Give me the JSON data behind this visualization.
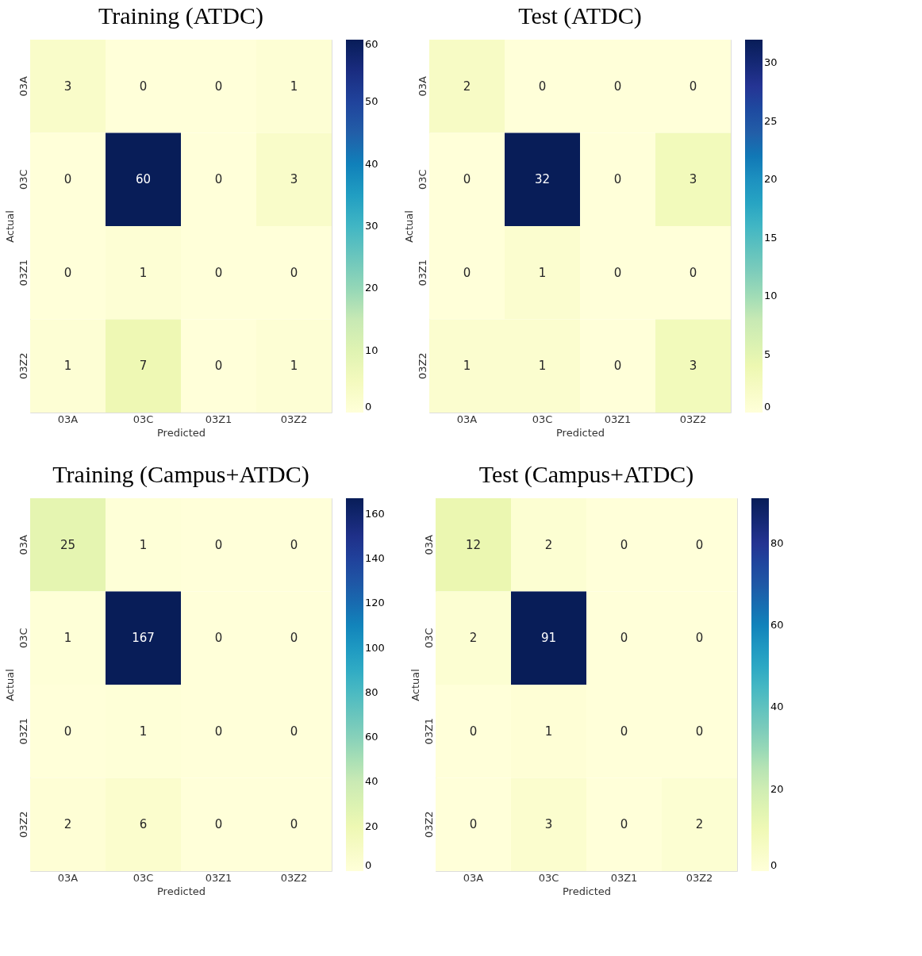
{
  "chart_data": [
    {
      "type": "heatmap",
      "title": "Training (ATDC)",
      "xlabel": "Predicted",
      "ylabel": "Actual",
      "categories": [
        "03A",
        "03C",
        "03Z1",
        "03Z2"
      ],
      "y_categories": [
        "03A",
        "03C",
        "03Z1",
        "03Z2"
      ],
      "cells": [
        [
          3,
          0,
          0,
          1
        ],
        [
          0,
          60,
          0,
          3
        ],
        [
          0,
          1,
          0,
          0
        ],
        [
          1,
          7,
          0,
          1
        ]
      ],
      "clim": [
        0,
        60
      ],
      "cticks": [
        0,
        10,
        20,
        30,
        40,
        50,
        60
      ],
      "data_labels": true
    },
    {
      "type": "heatmap",
      "title": "Test (ATDC)",
      "xlabel": "Predicted",
      "ylabel": "Actual",
      "categories": [
        "03A",
        "03C",
        "03Z1",
        "03Z2"
      ],
      "y_categories": [
        "03A",
        "03C",
        "03Z1",
        "03Z2"
      ],
      "cells": [
        [
          2,
          0,
          0,
          0
        ],
        [
          0,
          32,
          0,
          3
        ],
        [
          0,
          1,
          0,
          0
        ],
        [
          1,
          1,
          0,
          3
        ]
      ],
      "clim": [
        0,
        32
      ],
      "cticks": [
        0,
        5,
        10,
        15,
        20,
        25,
        30
      ],
      "data_labels": true
    },
    {
      "type": "heatmap",
      "title": "Training (Campus+ATDC)",
      "xlabel": "Predicted",
      "ylabel": "Actual",
      "categories": [
        "03A",
        "03C",
        "03Z1",
        "03Z2"
      ],
      "y_categories": [
        "03A",
        "03C",
        "03Z1",
        "03Z2"
      ],
      "cells": [
        [
          25,
          1,
          0,
          0
        ],
        [
          1,
          167,
          0,
          0
        ],
        [
          0,
          1,
          0,
          0
        ],
        [
          2,
          6,
          0,
          0
        ]
      ],
      "clim": [
        0,
        167
      ],
      "cticks": [
        0,
        20,
        40,
        60,
        80,
        100,
        120,
        140,
        160
      ],
      "data_labels": true
    },
    {
      "type": "heatmap",
      "title": "Test (Campus+ATDC)",
      "xlabel": "Predicted",
      "ylabel": "Actual",
      "categories": [
        "03A",
        "03C",
        "03Z1",
        "03Z2"
      ],
      "y_categories": [
        "03A",
        "03C",
        "03Z1",
        "03Z2"
      ],
      "cells": [
        [
          12,
          2,
          0,
          0
        ],
        [
          2,
          91,
          0,
          0
        ],
        [
          0,
          1,
          0,
          0
        ],
        [
          0,
          3,
          0,
          2
        ]
      ],
      "clim": [
        0,
        91
      ],
      "cticks": [
        0,
        20,
        40,
        60,
        80
      ],
      "data_labels": true
    }
  ]
}
